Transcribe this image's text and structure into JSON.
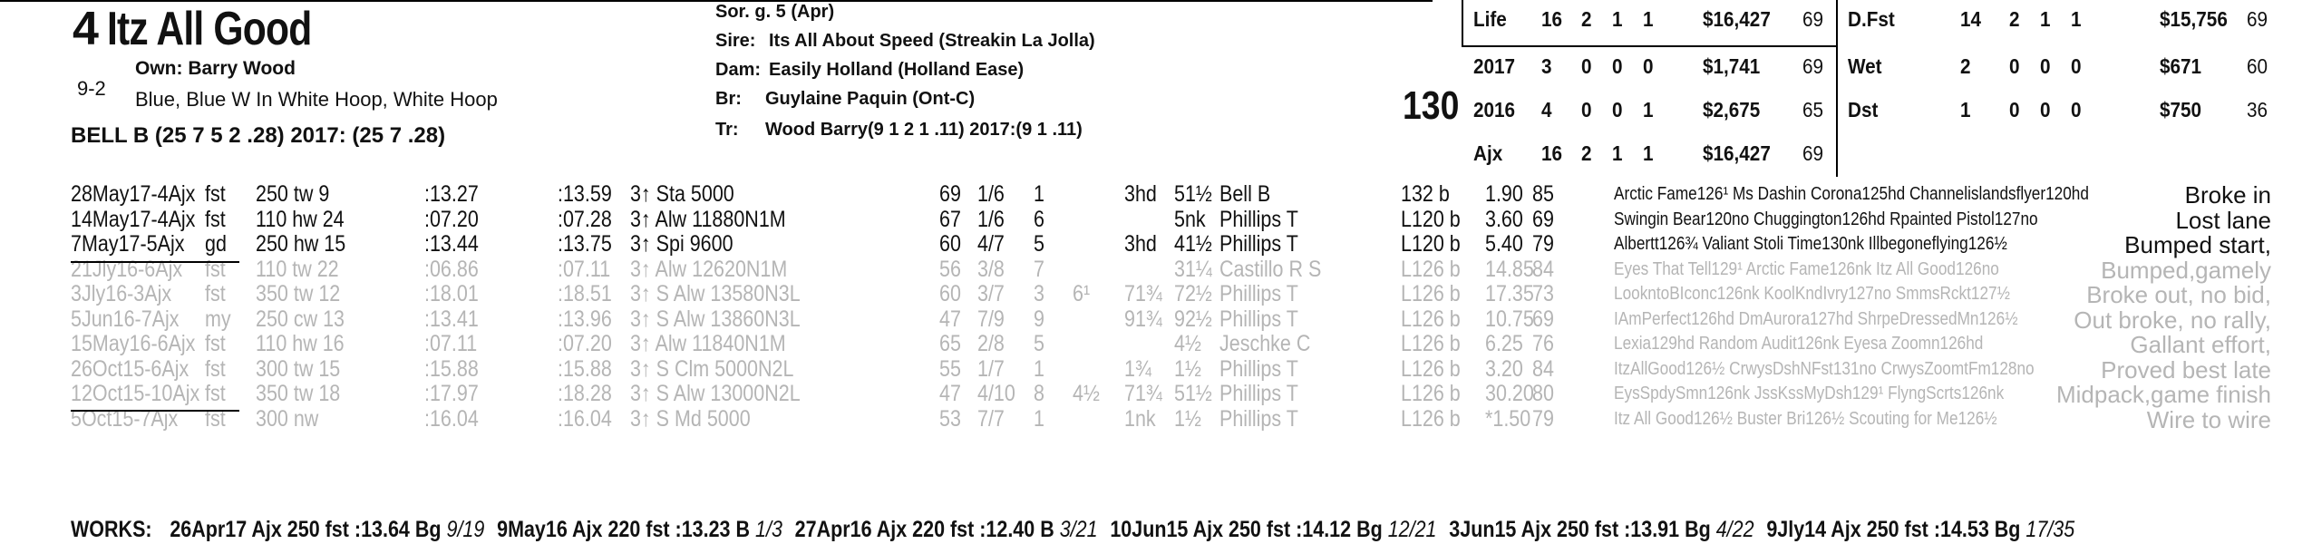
{
  "horse": {
    "program_number": "4",
    "name": "Itz All Good",
    "morning_line": "9-2",
    "owner": "Own: Barry Wood",
    "silks": "Blue, Blue W In White Hoop, White Hoop",
    "jockey": "BELL B (25 7 5 2 .28) 2017: (25 7 .28)"
  },
  "pedigree": [
    {
      "label": "Sor. g. 5 (Apr)",
      "value": ""
    },
    {
      "label": "Sire:",
      "value": "Its All About Speed (Streakin La Jolla)"
    },
    {
      "label": "Dam:",
      "value": "Easily Holland (Holland Ease)"
    },
    {
      "label": "Br:",
      "value": "Guylaine Paquin (Ont-C)"
    },
    {
      "label": "Tr:",
      "value": "Wood Barry(9 1 2 1 .11)  2017:(9 1 .11)"
    }
  ],
  "weight": "130",
  "stats_left": [
    {
      "label": "Life",
      "s": "16",
      "w": "2",
      "p": "1",
      "sh": "1",
      "earn": "$16,427",
      "spd": "69"
    },
    {
      "label": "2017",
      "s": "3",
      "w": "0",
      "p": "0",
      "sh": "0",
      "earn": "$1,741",
      "spd": "69"
    },
    {
      "label": "2016",
      "s": "4",
      "w": "0",
      "p": "0",
      "sh": "1",
      "earn": "$2,675",
      "spd": "65"
    },
    {
      "label": "Ajx",
      "s": "16",
      "w": "2",
      "p": "1",
      "sh": "1",
      "earn": "$16,427",
      "spd": "69"
    }
  ],
  "stats_right": [
    {
      "label": "D.Fst",
      "s": "14",
      "w": "2",
      "p": "1",
      "sh": "1",
      "earn": "$15,756",
      "spd": "69"
    },
    {
      "label": "Wet",
      "s": "2",
      "w": "0",
      "p": "0",
      "sh": "0",
      "earn": "$671",
      "spd": "60"
    },
    {
      "label": "Dst",
      "s": "1",
      "w": "0",
      "p": "0",
      "sh": "0",
      "earn": "$750",
      "spd": "36"
    }
  ],
  "past_performances": [
    {
      "date": "28May17-4Ajx",
      "trk": "fst",
      "dist": "250 tw 9",
      "f1": ":13.27",
      "f2": ":13.59",
      "race": "3↑ Sta 5000",
      "spd": "69",
      "pp": "1/6",
      "st": "1",
      "c1": "",
      "c2": "3hd",
      "fin": "51½",
      "jock": "Bell B",
      "wt": "132 b",
      "odds": "1.90",
      "sr": "85",
      "comment": "Arctic Fame126¹ Ms Dashin Corona125hd Channelislandsflyer120hd",
      "remark": "Broke in",
      "dim": false
    },
    {
      "date": "14May17-4Ajx",
      "trk": "fst",
      "dist": "110 hw 24",
      "f1": ":07.20",
      "f2": ":07.28",
      "race": "3↑ Alw 11880N1M",
      "spd": "67",
      "pp": "1/6",
      "st": "6",
      "c1": "",
      "c2": "",
      "fin": "5nk",
      "jock": "Phillips T",
      "wt": "L120 b",
      "odds": "3.60",
      "sr": "69",
      "comment": "Swingin Bear120no Chuggington126hd Rpainted Pistol127no",
      "remark": "Lost lane",
      "dim": false
    },
    {
      "date": "7May17-5Ajx",
      "trk": "gd",
      "dist": "250 hw 15",
      "f1": ":13.44",
      "f2": ":13.75",
      "race": "3↑ Spi 9600",
      "spd": "60",
      "pp": "4/7",
      "st": "5",
      "c1": "",
      "c2": "3hd",
      "fin": "41½",
      "jock": "Phillips T",
      "wt": "L120 b",
      "odds": "5.40",
      "sr": "79",
      "comment": "Albertt126¾ Valiant Stoli Time130nk Illbegoneflying126½",
      "remark": "Bumped start,",
      "dim": false
    },
    {
      "date": "21Jly16-6Ajx",
      "trk": "fst",
      "dist": "110 tw 22",
      "f1": ":06.86",
      "f2": ":07.11",
      "race": "3↑ Alw 12620N1M",
      "spd": "56",
      "pp": "3/8",
      "st": "7",
      "c1": "",
      "c2": "",
      "fin": "31¼",
      "jock": "Castillo R S",
      "wt": "L126 b",
      "odds": "14.85",
      "sr": "84",
      "comment": "Eyes That Tell129¹ Arctic Fame126nk Itz All Good126no",
      "remark": "Bumped,gamely",
      "dim": true
    },
    {
      "date": "3Jly16-3Ajx",
      "trk": "fst",
      "dist": "350 tw 12",
      "f1": ":18.01",
      "f2": ":18.51",
      "race": "3↑ S Alw 13580N3L",
      "spd": "60",
      "pp": "3/7",
      "st": "3",
      "c1": "6¹",
      "c2": "71¾",
      "fin": "72½",
      "jock": "Phillips T",
      "wt": "L126 b",
      "odds": "17.35",
      "sr": "73",
      "comment": "LookntoBIconc126nk KoolKndIvry127no SmmsRckt127½",
      "remark": "Broke out, no bid,",
      "dim": true
    },
    {
      "date": "5Jun16-7Ajx",
      "trk": "my",
      "dist": "250 cw 13",
      "f1": ":13.41",
      "f2": ":13.96",
      "race": "3↑ S Alw 13860N3L",
      "spd": "47",
      "pp": "7/9",
      "st": "9",
      "c1": "",
      "c2": "91¾",
      "fin": "92½",
      "jock": "Phillips T",
      "wt": "L126 b",
      "odds": "10.75",
      "sr": "69",
      "comment": "IAmPerfect126hd DmAurora127hd ShrpeDressedMn126½",
      "remark": "Out broke, no rally,",
      "dim": true
    },
    {
      "date": "15May16-6Ajx",
      "trk": "fst",
      "dist": "110 hw 16",
      "f1": ":07.11",
      "f2": ":07.20",
      "race": "3↑ Alw 11840N1M",
      "spd": "65",
      "pp": "2/8",
      "st": "5",
      "c1": "",
      "c2": "",
      "fin": "4½",
      "jock": "Jeschke C",
      "wt": "L126 b",
      "odds": "6.25",
      "sr": "76",
      "comment": "Lexia129hd Random Audit126nk Eyesa Zoomn126hd",
      "remark": "Gallant effort,",
      "dim": true
    },
    {
      "date": "26Oct15-6Ajx",
      "trk": "fst",
      "dist": "300 tw 15",
      "f1": ":15.88",
      "f2": ":15.88",
      "race": "3↑ S Clm 5000N2L",
      "spd": "55",
      "pp": "1/7",
      "st": "1",
      "c1": "",
      "c2": "1¾",
      "fin": "1½",
      "jock": "Phillips T",
      "wt": "L126 b",
      "odds": "3.20",
      "sr": "84",
      "comment": "ItzAllGood126½ CrwysDshNFst131no CrwysZoomtFm128no",
      "remark": "Proved best late",
      "dim": true
    },
    {
      "date": "12Oct15-10Ajx",
      "trk": "fst",
      "dist": "350 tw 18",
      "f1": ":17.97",
      "f2": ":18.28",
      "race": "3↑ S Alw 13000N2L",
      "spd": "47",
      "pp": "4/10",
      "st": "8",
      "c1": "4½",
      "c2": "71¾",
      "fin": "51½",
      "jock": "Phillips T",
      "wt": "L126 b",
      "odds": "30.20",
      "sr": "80",
      "comment": "EysSpdySmn126nk JssKssMyDsh129¹ FlyngScrts126nk",
      "remark": "Midpack,game finish",
      "dim": true
    },
    {
      "date": "5Oct15-7Ajx",
      "trk": "fst",
      "dist": "300 nw",
      "f1": ":16.04",
      "f2": ":16.04",
      "race": "3↑ S Md 5000",
      "spd": "53",
      "pp": "7/7",
      "st": "1",
      "c1": "",
      "c2": "1nk",
      "fin": "1½",
      "jock": "Phillips T",
      "wt": "L126 b",
      "odds": "*1.50",
      "sr": "79",
      "comment": "Itz All Good126½ Buster Bri126½ Scouting for Me126½",
      "remark": "Wire to wire",
      "dim": true
    }
  ],
  "works_label": "WORKS:",
  "works": [
    {
      "date": "26Apr17",
      "trk": "Ajx",
      "dist": "250 fst",
      "time": ":13.64",
      "g": "Bg",
      "rank": "9/19"
    },
    {
      "date": "9May16",
      "trk": "Ajx",
      "dist": "220 fst",
      "time": ":13.23",
      "g": "B",
      "rank": "1/3"
    },
    {
      "date": "27Apr16",
      "trk": "Ajx",
      "dist": "220 fst",
      "time": ":12.40",
      "g": "B",
      "rank": "3/21"
    },
    {
      "date": "10Jun15",
      "trk": "Ajx",
      "dist": "250 fst",
      "time": ":14.12",
      "g": "Bg",
      "rank": "12/21"
    },
    {
      "date": "3Jun15",
      "trk": "Ajx",
      "dist": "250 fst",
      "time": ":13.91",
      "g": "Bg",
      "rank": "4/22"
    },
    {
      "date": "9Jly14",
      "trk": "Ajx",
      "dist": "250 fst",
      "time": ":14.53",
      "g": "Bg",
      "rank": "17/35"
    }
  ]
}
